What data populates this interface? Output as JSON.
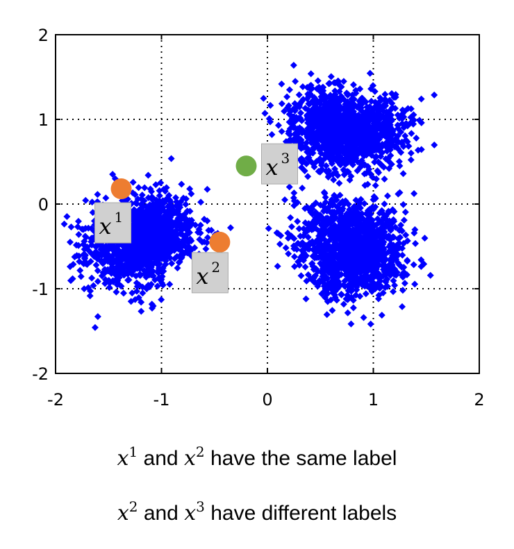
{
  "chart_data": {
    "type": "scatter",
    "xlim": [
      -2,
      2
    ],
    "ylim": [
      -2,
      2
    ],
    "xticks": [
      "-2",
      "-1",
      "0",
      "1",
      "2"
    ],
    "yticks": [
      "-2",
      "-1",
      "0",
      "1",
      "2"
    ],
    "grid": "dotted",
    "series": [
      {
        "marker": "diamond",
        "color": "#0000ff",
        "clusters": [
          {
            "center": [
              -0.95,
              -0.35
            ],
            "count": 1400
          },
          {
            "center": [
              0.55,
              1.05
            ],
            "count": 1300
          },
          {
            "center": [
              0.75,
              -0.75
            ],
            "count": 1400
          }
        ]
      }
    ],
    "highlighted_points": [
      {
        "label_var": "x",
        "label_sup": "1",
        "x": -1.38,
        "y": 0.18,
        "color": "#ed7d31"
      },
      {
        "label_var": "x",
        "label_sup": "2",
        "x": -0.45,
        "y": -0.45,
        "color": "#ed7d31"
      },
      {
        "label_var": "x",
        "label_sup": "3",
        "x": -0.2,
        "y": 0.45,
        "color": "#70ad47"
      }
    ]
  },
  "captions": [
    {
      "var1": "x",
      "sup1": "1",
      "and": "and",
      "var2": "x",
      "sup2": "2",
      "rest": "have the same label"
    },
    {
      "var1": "x",
      "sup1": "2",
      "and": "and",
      "var2": "x",
      "sup2": "3",
      "rest": "have different labels"
    }
  ]
}
